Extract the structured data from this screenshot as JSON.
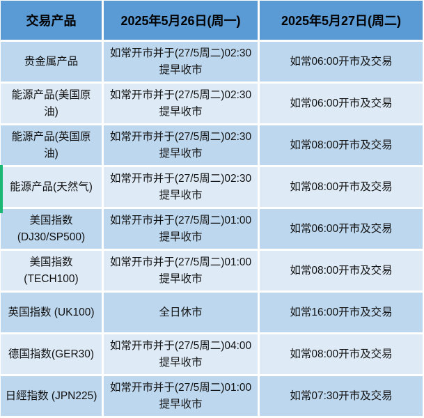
{
  "table": {
    "headers": [
      "交易产品",
      "2025年5月26日(周一)",
      "2025年5月27日(周二)"
    ],
    "rows": [
      {
        "product": "贵金属产品",
        "may26": "如常开市并于(27/5周二)02:30\n提早收市",
        "may27": "如常06:00开市及交易"
      },
      {
        "product": "能源产品(美国原油)",
        "may26": "如常开市并于(27/5周二)02:30\n提早收市",
        "may27": "如常06:00开市及交易"
      },
      {
        "product": "能源产品(英国原油)",
        "may26": "如常开市并于(27/5周二)02:30\n提早收市",
        "may27": "如常08:00开市及交易"
      },
      {
        "product": "能源产品(天然气)",
        "may26": "如常开市并于(27/5周二)02:30\n提早收市",
        "may27": "如常08:00开市及交易"
      },
      {
        "product": "美国指数\n(DJ30/SP500)",
        "may26": "如常开市并于(27/5周二)01:00\n提早收市",
        "may27": "如常06:00开市及交易"
      },
      {
        "product": "美国指数(TECH100)",
        "may26": "如常开市并于(27/5周二)01:00\n提早收市",
        "may27": "如常08:00开市及交易"
      },
      {
        "product": "英国指数 (UK100)",
        "may26": "全日休市",
        "may27": "如常16:00开市及交易"
      },
      {
        "product": "德国指数(GER30)",
        "may26": "如常开市并于(27/5周二)04:00\n提早收市",
        "may27": "如常08:00开市及交易"
      },
      {
        "product": "日經指数 (JPN225)",
        "may26": "如常开市并于(27/5周二)01:00\n提早收市",
        "may27": "如常07:30开市及交易"
      }
    ],
    "colors": {
      "header_bg": "#5B9BD5",
      "row_odd_bg": "#BDD7EE",
      "row_even_bg": "#DEEBF7",
      "grid_line": "#FFFFFF",
      "accent_green": "#1CB873"
    }
  }
}
